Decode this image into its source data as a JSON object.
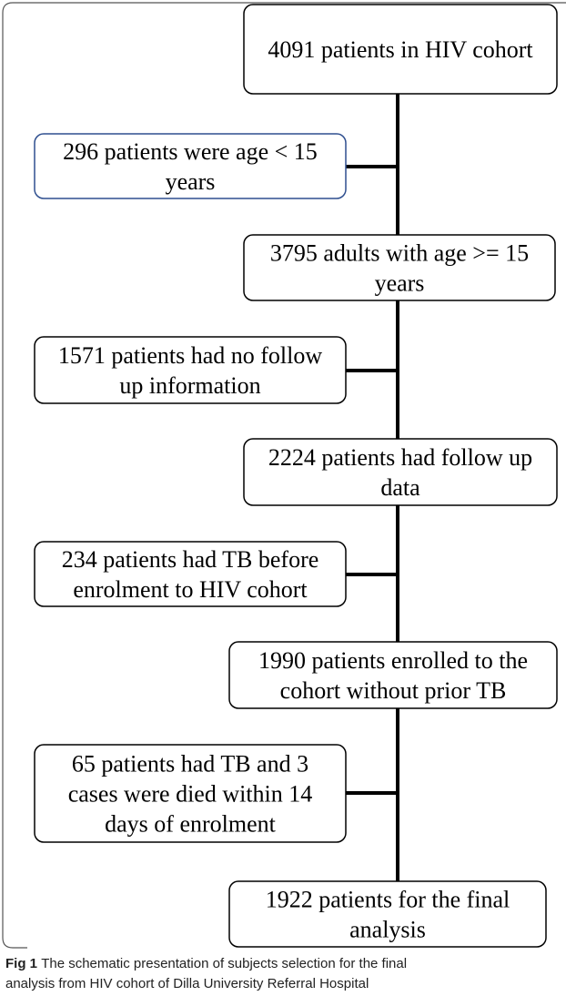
{
  "nodes": [
    {
      "lines": [
        "4091 patients in HIV cohort"
      ]
    },
    {
      "lines": [
        "296 patients were age < 15",
        "years"
      ]
    },
    {
      "lines": [
        "3795 adults with age >= 15",
        "years"
      ]
    },
    {
      "lines": [
        "1571 patients had no follow",
        "up information"
      ]
    },
    {
      "lines": [
        "2224 patients had follow up",
        "data"
      ]
    },
    {
      "lines": [
        "234 patients had TB before",
        "enrolment to HIV cohort"
      ]
    },
    {
      "lines": [
        "1990 patients enrolled to the",
        "cohort without prior TB"
      ]
    },
    {
      "lines": [
        "65 patients had TB and 3",
        "cases were died within 14",
        "days of enrolment"
      ]
    },
    {
      "lines": [
        "1922 patients for the final",
        "analysis"
      ]
    }
  ],
  "caption": {
    "label": "Fig 1",
    "lines": [
      "The schematic presentation of subjects selection for the final",
      "analysis from HIV cohort of Dilla University Referral Hospital"
    ]
  }
}
